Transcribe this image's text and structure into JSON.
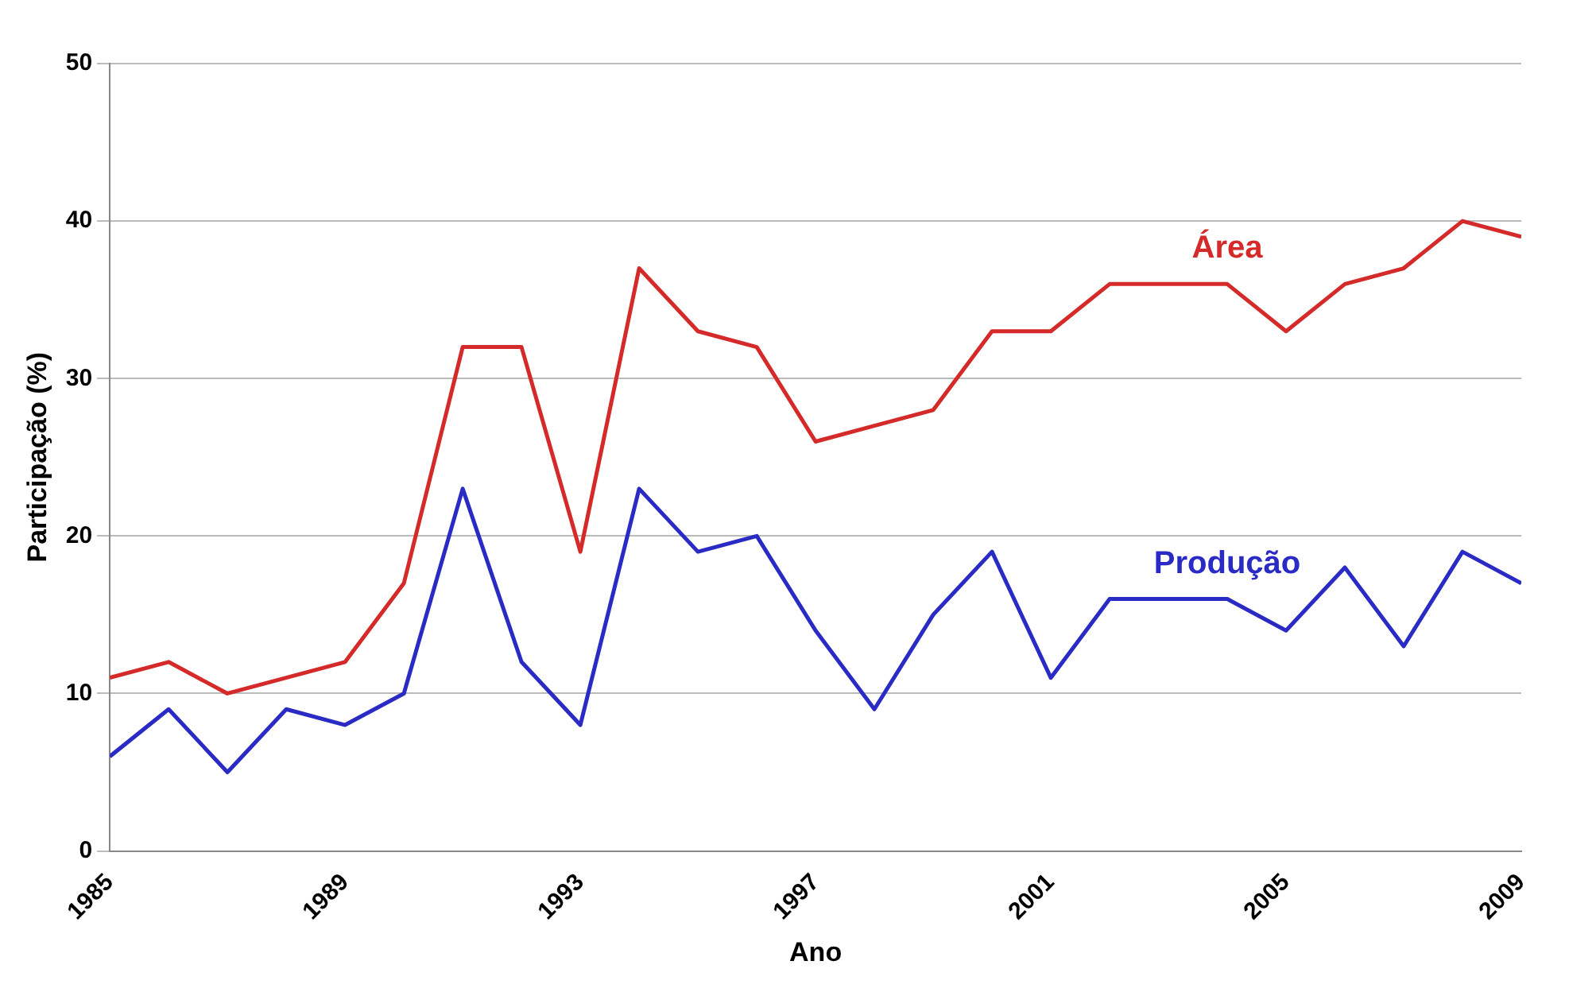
{
  "chart_data": {
    "type": "line",
    "xlabel": "Ano",
    "ylabel": "Participação (%)",
    "x": [
      1985,
      1986,
      1987,
      1988,
      1989,
      1990,
      1991,
      1992,
      1993,
      1994,
      1995,
      1996,
      1997,
      1998,
      1999,
      2000,
      2001,
      2002,
      2003,
      2004,
      2005,
      2006,
      2007,
      2008,
      2009
    ],
    "series": [
      {
        "name": "Área",
        "color": "#d42a2a",
        "values": [
          11,
          12,
          10,
          11,
          12,
          17,
          32,
          32,
          19,
          37,
          33,
          32,
          26,
          27,
          28,
          33,
          33,
          36,
          36,
          36,
          33,
          36,
          37,
          40,
          39
        ]
      },
      {
        "name": "Produção",
        "color": "#2a2ac4",
        "values": [
          6,
          9,
          5,
          9,
          8,
          10,
          23,
          12,
          8,
          23,
          19,
          20,
          14,
          9,
          15,
          19,
          11,
          16,
          16,
          16,
          14,
          18,
          13,
          19,
          17
        ]
      }
    ],
    "xlim": [
      1985,
      2009
    ],
    "xticks": [
      1985,
      1989,
      1993,
      1997,
      2001,
      2005,
      2009
    ],
    "ylim": [
      0,
      50
    ],
    "yticks": [
      0,
      10,
      20,
      30,
      40,
      50
    ],
    "grid": "y",
    "legend": false,
    "marker": "none",
    "line_style": "solid"
  }
}
